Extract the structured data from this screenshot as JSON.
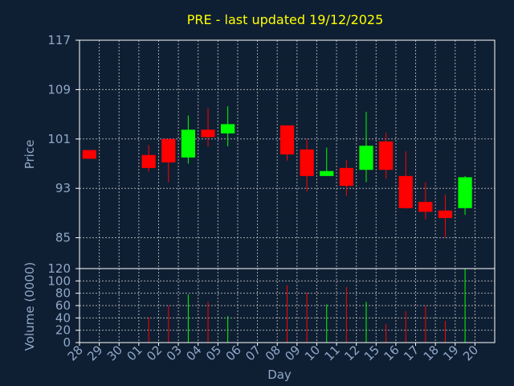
{
  "chart_data": {
    "type": "candlestick",
    "title": "PRE - last updated 19/12/2025",
    "colors": {
      "background": "#0f1f33",
      "frame": "#ffffff",
      "grid": "#c8c8c8",
      "text": "#8fa8c8",
      "title": "#ffff00",
      "up": "#00ff00",
      "down": "#ff0000"
    },
    "x_days": [
      "28",
      "29",
      "30",
      "01",
      "02",
      "03",
      "04",
      "05",
      "06",
      "07",
      "08",
      "09",
      "10",
      "11",
      "12",
      "15",
      "16",
      "17",
      "18",
      "19",
      "20"
    ],
    "price_panel": {
      "ylabel": "Price",
      "ylim": [
        80,
        117
      ],
      "yticks": [
        85,
        93,
        101,
        109,
        117
      ],
      "candles": [
        {
          "day": "28",
          "open": 99.2,
          "high": 99.2,
          "low": 97.8,
          "close": 97.8
        },
        {
          "day": "01",
          "open": 98.4,
          "high": 100.0,
          "low": 95.7,
          "close": 96.3
        },
        {
          "day": "02",
          "open": 101.0,
          "high": 101.0,
          "low": 94.0,
          "close": 97.2
        },
        {
          "day": "03",
          "open": 98.0,
          "high": 104.8,
          "low": 97.0,
          "close": 102.5
        },
        {
          "day": "04",
          "open": 102.5,
          "high": 106.0,
          "low": 99.8,
          "close": 101.3
        },
        {
          "day": "05",
          "open": 101.9,
          "high": 106.3,
          "low": 99.8,
          "close": 103.4
        },
        {
          "day": "08",
          "open": 103.2,
          "high": 103.2,
          "low": 97.5,
          "close": 98.5
        },
        {
          "day": "09",
          "open": 99.3,
          "high": 101.0,
          "low": 92.5,
          "close": 95.0
        },
        {
          "day": "10",
          "open": 95.0,
          "high": 99.6,
          "low": 95.0,
          "close": 95.8
        },
        {
          "day": "11",
          "open": 96.3,
          "high": 97.6,
          "low": 91.8,
          "close": 93.4
        },
        {
          "day": "12",
          "open": 96.0,
          "high": 105.4,
          "low": 94.0,
          "close": 99.9
        },
        {
          "day": "15",
          "open": 100.6,
          "high": 102.0,
          "low": 94.6,
          "close": 96.0
        },
        {
          "day": "16",
          "open": 95.0,
          "high": 99.0,
          "low": 89.7,
          "close": 89.8
        },
        {
          "day": "17",
          "open": 90.8,
          "high": 94.0,
          "low": 88.0,
          "close": 89.2
        },
        {
          "day": "18",
          "open": 89.4,
          "high": 92.0,
          "low": 85.0,
          "close": 88.2
        },
        {
          "day": "19",
          "open": 89.8,
          "high": 95.0,
          "low": 88.7,
          "close": 94.8
        }
      ]
    },
    "volume_panel": {
      "ylabel": "Volume (0000)",
      "ylim": [
        0,
        120
      ],
      "yticks": [
        0,
        20,
        40,
        60,
        80,
        100,
        120
      ],
      "bars": [
        {
          "day": "01",
          "value": 41,
          "dir": "down"
        },
        {
          "day": "02",
          "value": 60,
          "dir": "down"
        },
        {
          "day": "03",
          "value": 78,
          "dir": "up"
        },
        {
          "day": "04",
          "value": 66,
          "dir": "down"
        },
        {
          "day": "05",
          "value": 43,
          "dir": "up"
        },
        {
          "day": "08",
          "value": 93,
          "dir": "down"
        },
        {
          "day": "09",
          "value": 81,
          "dir": "down"
        },
        {
          "day": "10",
          "value": 62,
          "dir": "up"
        },
        {
          "day": "11",
          "value": 90,
          "dir": "down"
        },
        {
          "day": "12",
          "value": 66,
          "dir": "up"
        },
        {
          "day": "15",
          "value": 30,
          "dir": "down"
        },
        {
          "day": "16",
          "value": 51,
          "dir": "down"
        },
        {
          "day": "17",
          "value": 60,
          "dir": "down"
        },
        {
          "day": "18",
          "value": 35,
          "dir": "down"
        },
        {
          "day": "19",
          "value": 120,
          "dir": "up"
        }
      ]
    },
    "xlabel": "Day"
  }
}
